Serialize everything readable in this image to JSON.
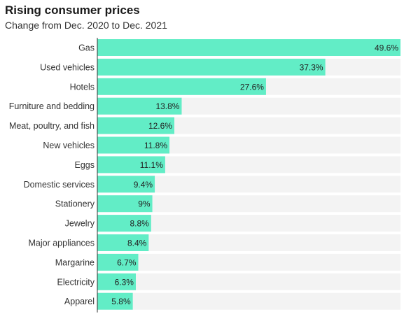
{
  "header": {
    "title": "Rising consumer prices",
    "subtitle": "Change from Dec. 2020 to Dec. 2021"
  },
  "colors": {
    "bar": "#62edc6",
    "track": "#f3f3f3",
    "axis": "#333333"
  },
  "chart_data": {
    "type": "bar",
    "orientation": "horizontal",
    "title": "Rising consumer prices",
    "subtitle": "Change from Dec. 2020 to Dec. 2021",
    "categories": [
      "Gas",
      "Used vehicles",
      "Hotels",
      "Furniture and bedding",
      "Meat, poultry, and fish",
      "New vehicles",
      "Eggs",
      "Domestic services",
      "Stationery",
      "Jewelry",
      "Major appliances",
      "Margarine",
      "Electricity",
      "Apparel"
    ],
    "values": [
      49.6,
      37.3,
      27.6,
      13.8,
      12.6,
      11.8,
      11.1,
      9.4,
      9,
      8.8,
      8.4,
      6.7,
      6.3,
      5.8
    ],
    "labels": [
      "49.6%",
      "37.3%",
      "27.6%",
      "13.8%",
      "12.6%",
      "11.8%",
      "11.1%",
      "9.4%",
      "9%",
      "8.8%",
      "8.4%",
      "6.7%",
      "6.3%",
      "5.8%"
    ],
    "xlim": [
      0,
      49.6
    ],
    "grid": false,
    "legend": "none"
  }
}
